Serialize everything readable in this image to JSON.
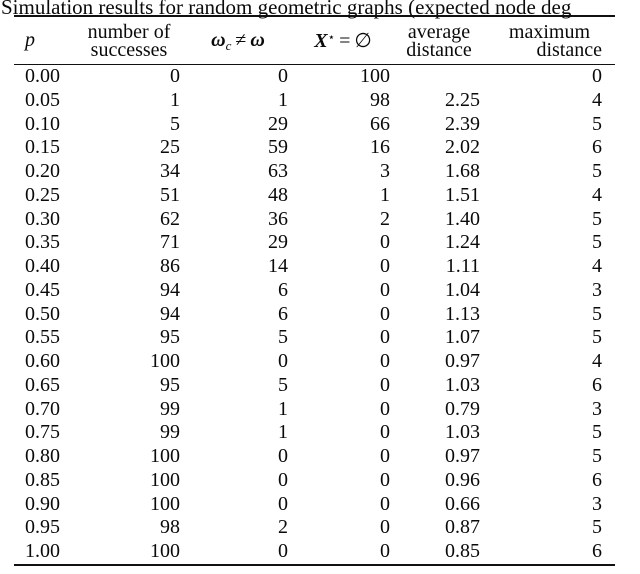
{
  "colors": {
    "text": "#0a0a0a",
    "background": "#ffffff",
    "rule": "#111111"
  },
  "title": "Simulation results for random geometric graphs (expected node deg",
  "table": {
    "headers": {
      "p": "p",
      "successes_line1": "number of",
      "successes_line2": "successes",
      "omega": {
        "sym1": "ω",
        "sub": "c",
        "neq": "≠",
        "sym2": "ω"
      },
      "xstar": {
        "sym": "X",
        "sup": "⋆",
        "eq": "=",
        "empty": "∅"
      },
      "avg_line1": "average",
      "avg_line2": "distance",
      "max_line1": "maximum",
      "max_line2": "distance"
    },
    "rows": [
      {
        "p": "0.00",
        "successes": "0",
        "omega_neq": "0",
        "x_empty": "100",
        "avg_distance": "",
        "max_distance": "0"
      },
      {
        "p": "0.05",
        "successes": "1",
        "omega_neq": "1",
        "x_empty": "98",
        "avg_distance": "2.25",
        "max_distance": "4"
      },
      {
        "p": "0.10",
        "successes": "5",
        "omega_neq": "29",
        "x_empty": "66",
        "avg_distance": "2.39",
        "max_distance": "5"
      },
      {
        "p": "0.15",
        "successes": "25",
        "omega_neq": "59",
        "x_empty": "16",
        "avg_distance": "2.02",
        "max_distance": "6"
      },
      {
        "p": "0.20",
        "successes": "34",
        "omega_neq": "63",
        "x_empty": "3",
        "avg_distance": "1.68",
        "max_distance": "5"
      },
      {
        "p": "0.25",
        "successes": "51",
        "omega_neq": "48",
        "x_empty": "1",
        "avg_distance": "1.51",
        "max_distance": "4"
      },
      {
        "p": "0.30",
        "successes": "62",
        "omega_neq": "36",
        "x_empty": "2",
        "avg_distance": "1.40",
        "max_distance": "5"
      },
      {
        "p": "0.35",
        "successes": "71",
        "omega_neq": "29",
        "x_empty": "0",
        "avg_distance": "1.24",
        "max_distance": "5"
      },
      {
        "p": "0.40",
        "successes": "86",
        "omega_neq": "14",
        "x_empty": "0",
        "avg_distance": "1.11",
        "max_distance": "4"
      },
      {
        "p": "0.45",
        "successes": "94",
        "omega_neq": "6",
        "x_empty": "0",
        "avg_distance": "1.04",
        "max_distance": "3"
      },
      {
        "p": "0.50",
        "successes": "94",
        "omega_neq": "6",
        "x_empty": "0",
        "avg_distance": "1.13",
        "max_distance": "5"
      },
      {
        "p": "0.55",
        "successes": "95",
        "omega_neq": "5",
        "x_empty": "0",
        "avg_distance": "1.07",
        "max_distance": "5"
      },
      {
        "p": "0.60",
        "successes": "100",
        "omega_neq": "0",
        "x_empty": "0",
        "avg_distance": "0.97",
        "max_distance": "4"
      },
      {
        "p": "0.65",
        "successes": "95",
        "omega_neq": "5",
        "x_empty": "0",
        "avg_distance": "1.03",
        "max_distance": "6"
      },
      {
        "p": "0.70",
        "successes": "99",
        "omega_neq": "1",
        "x_empty": "0",
        "avg_distance": "0.79",
        "max_distance": "3"
      },
      {
        "p": "0.75",
        "successes": "99",
        "omega_neq": "1",
        "x_empty": "0",
        "avg_distance": "1.03",
        "max_distance": "5"
      },
      {
        "p": "0.80",
        "successes": "100",
        "omega_neq": "0",
        "x_empty": "0",
        "avg_distance": "0.97",
        "max_distance": "5"
      },
      {
        "p": "0.85",
        "successes": "100",
        "omega_neq": "0",
        "x_empty": "0",
        "avg_distance": "0.96",
        "max_distance": "6"
      },
      {
        "p": "0.90",
        "successes": "100",
        "omega_neq": "0",
        "x_empty": "0",
        "avg_distance": "0.66",
        "max_distance": "3"
      },
      {
        "p": "0.95",
        "successes": "98",
        "omega_neq": "2",
        "x_empty": "0",
        "avg_distance": "0.87",
        "max_distance": "5"
      },
      {
        "p": "1.00",
        "successes": "100",
        "omega_neq": "0",
        "x_empty": "0",
        "avg_distance": "0.85",
        "max_distance": "6"
      }
    ]
  }
}
